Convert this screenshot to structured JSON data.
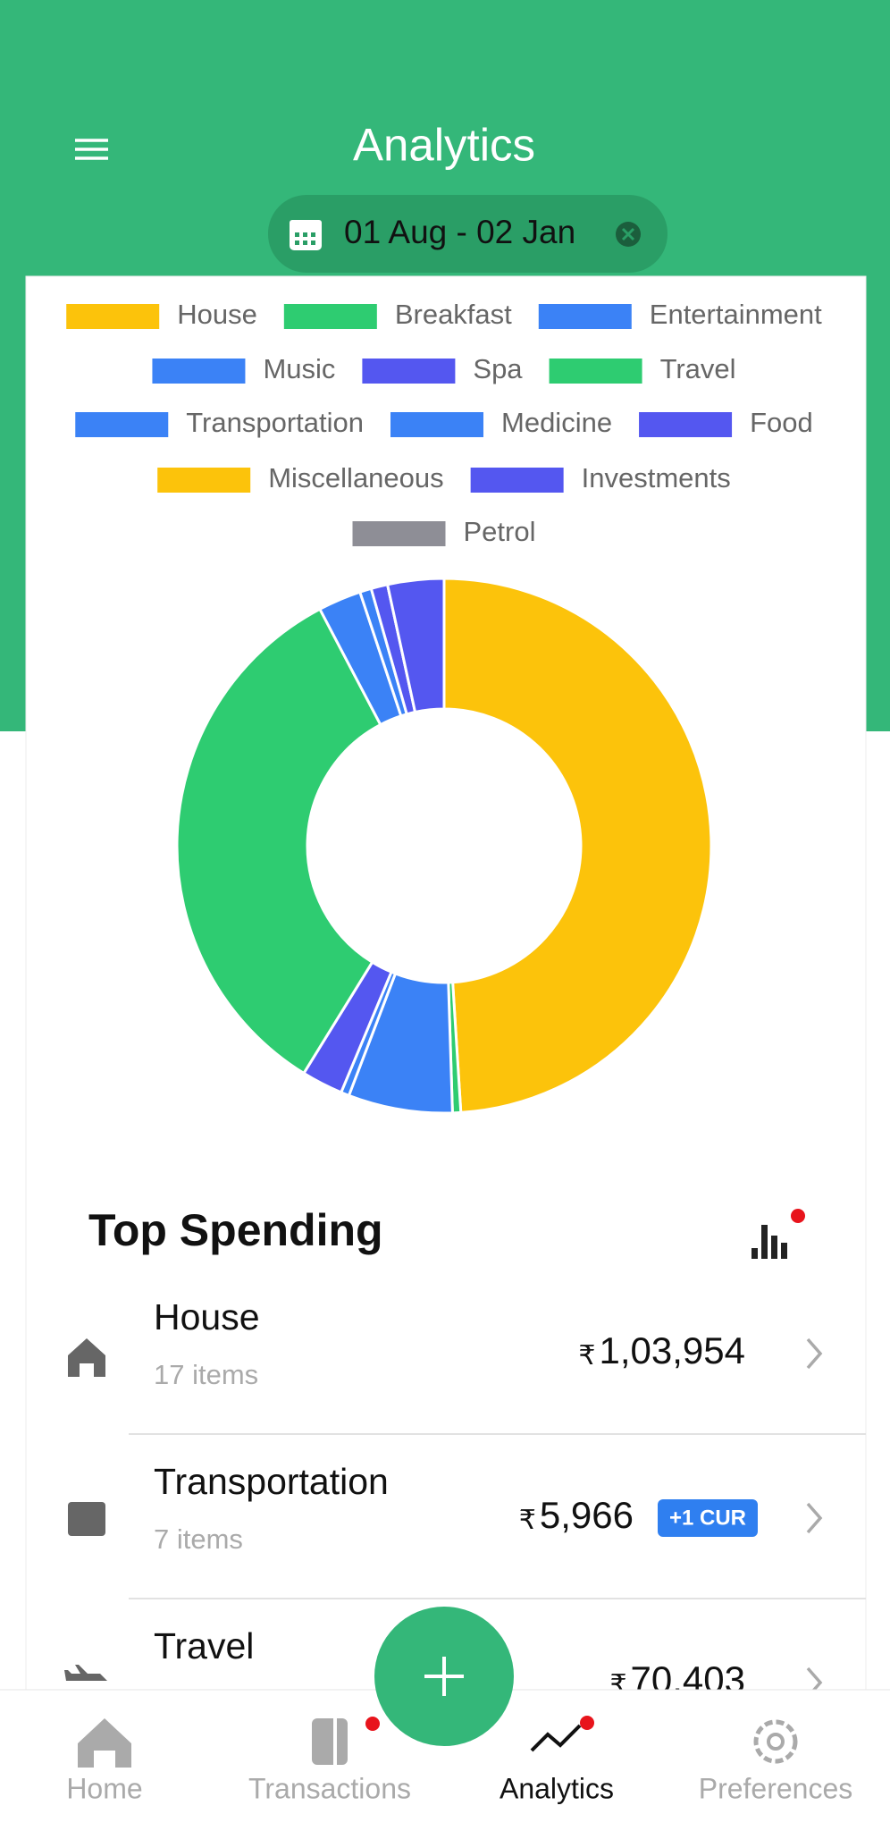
{
  "header": {
    "title": "Analytics",
    "date_range": "01 Aug - 02 Jan"
  },
  "chart_data": {
    "type": "pie",
    "categories": [
      "House",
      "Breakfast",
      "Entertainment",
      "Music",
      "Spa",
      "Travel",
      "Transportation",
      "Medicine",
      "Food",
      "Miscellaneous",
      "Investments",
      "Petrol"
    ],
    "values": [
      49,
      0.5,
      6.3,
      0.5,
      2.5,
      33.5,
      2.6,
      0.7,
      1,
      0,
      3.4,
      0
    ],
    "colors": [
      "#fcc30b",
      "#2ecc71",
      "#3b82f6",
      "#3b82f6",
      "#5457f0",
      "#2ecc71",
      "#3b82f6",
      "#3b82f6",
      "#5457f0",
      "#fcc30b",
      "#5457f0",
      "#8e8e96"
    ]
  },
  "top_spending": {
    "title": "Top Spending",
    "currency": "₹",
    "items": [
      {
        "name": "House",
        "count": "17 items",
        "amount": "1,03,954"
      },
      {
        "name": "Transportation",
        "count": "7 items",
        "amount": "5,966",
        "badge": "+1 CUR"
      },
      {
        "name": "Travel",
        "amount": "70,403"
      }
    ]
  },
  "nav": [
    "Home",
    "Transactions",
    "Analytics",
    "Preferences"
  ]
}
